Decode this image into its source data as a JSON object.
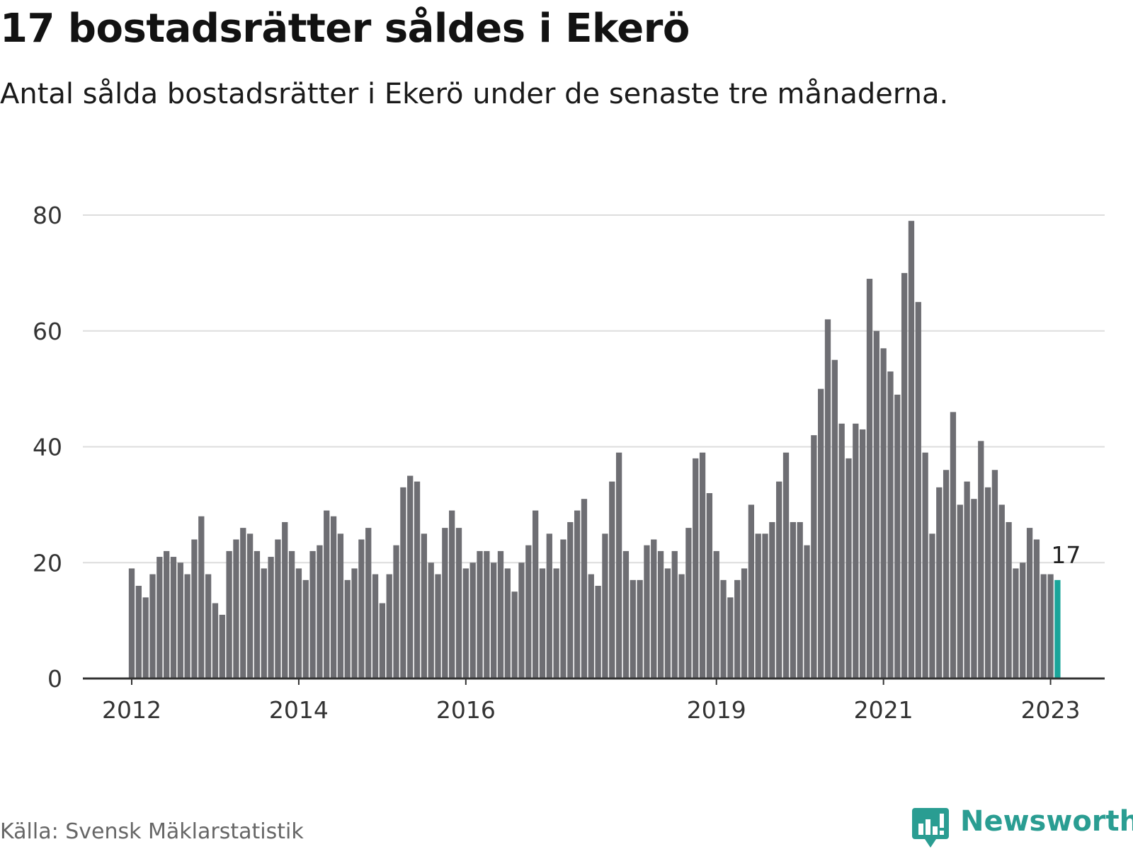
{
  "title": "17 bostadsrätter såldes i Ekerö",
  "subtitle": "Antal sålda bostadsrätter i Ekerö under de senaste tre månaderna.",
  "source": "Källa: Svensk Mäklarstatistik",
  "brand": {
    "name": "Newsworthy",
    "icon": "newsworthy-logo-icon"
  },
  "colors": {
    "bar": "#6e6e73",
    "highlight": "#1aa59a",
    "grid": "#dddddd",
    "axis": "#333333",
    "brand": "#2a9d92"
  },
  "chart_data": {
    "type": "bar",
    "title": "17 bostadsrätter såldes i Ekerö",
    "subtitle": "Antal sålda bostadsrätter i Ekerö under de senaste tre månaderna.",
    "xlabel": "",
    "ylabel": "",
    "ylim": [
      0,
      80
    ],
    "yticks": [
      0,
      20,
      40,
      60,
      80
    ],
    "grid": true,
    "xticks": [
      {
        "label": "2012",
        "index": 0
      },
      {
        "label": "2014",
        "index": 24
      },
      {
        "label": "2016",
        "index": 48
      },
      {
        "label": "2019",
        "index": 84
      },
      {
        "label": "2021",
        "index": 108
      },
      {
        "label": "2023",
        "index": 132
      }
    ],
    "highlight": {
      "index": 133,
      "label": "17"
    },
    "values": [
      19,
      16,
      14,
      18,
      21,
      22,
      21,
      20,
      18,
      24,
      28,
      18,
      13,
      11,
      22,
      24,
      26,
      25,
      22,
      19,
      21,
      24,
      27,
      22,
      19,
      17,
      22,
      23,
      29,
      28,
      25,
      17,
      19,
      24,
      26,
      18,
      13,
      18,
      23,
      33,
      35,
      34,
      25,
      20,
      18,
      26,
      29,
      26,
      19,
      20,
      22,
      22,
      20,
      22,
      19,
      15,
      20,
      23,
      29,
      19,
      25,
      19,
      24,
      27,
      29,
      31,
      18,
      16,
      25,
      34,
      39,
      22,
      17,
      17,
      23,
      24,
      22,
      19,
      22,
      18,
      26,
      38,
      39,
      32,
      22,
      17,
      14,
      17,
      19,
      30,
      25,
      25,
      27,
      34,
      39,
      27,
      27,
      23,
      42,
      50,
      62,
      55,
      44,
      38,
      44,
      43,
      69,
      60,
      57,
      53,
      49,
      70,
      79,
      65,
      39,
      25,
      33,
      36,
      46,
      30,
      34,
      31,
      41,
      33,
      36,
      30,
      27,
      19,
      20,
      26,
      24,
      18,
      18,
      17
    ]
  }
}
